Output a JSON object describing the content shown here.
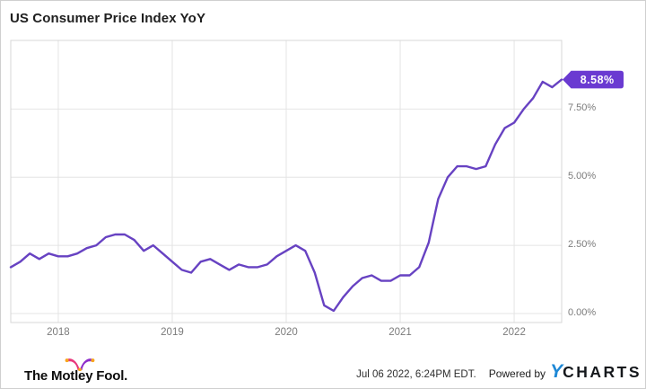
{
  "header": {
    "title": "US Consumer Price Index YoY"
  },
  "chart_data": {
    "type": "line",
    "title": "US Consumer Price Index YoY",
    "x": [
      "2017-07",
      "2017-08",
      "2017-09",
      "2017-10",
      "2017-11",
      "2017-12",
      "2018-01",
      "2018-02",
      "2018-03",
      "2018-04",
      "2018-05",
      "2018-06",
      "2018-07",
      "2018-08",
      "2018-09",
      "2018-10",
      "2018-11",
      "2018-12",
      "2019-01",
      "2019-02",
      "2019-03",
      "2019-04",
      "2019-05",
      "2019-06",
      "2019-07",
      "2019-08",
      "2019-09",
      "2019-10",
      "2019-11",
      "2019-12",
      "2020-01",
      "2020-02",
      "2020-03",
      "2020-04",
      "2020-05",
      "2020-06",
      "2020-07",
      "2020-08",
      "2020-09",
      "2020-10",
      "2020-11",
      "2020-12",
      "2021-01",
      "2021-02",
      "2021-03",
      "2021-04",
      "2021-05",
      "2021-06",
      "2021-07",
      "2021-08",
      "2021-09",
      "2021-10",
      "2021-11",
      "2021-12",
      "2022-01",
      "2022-02",
      "2022-03",
      "2022-04",
      "2022-05"
    ],
    "series": [
      {
        "name": "US Consumer Price Index YoY",
        "values": [
          1.7,
          1.9,
          2.2,
          2.0,
          2.2,
          2.1,
          2.1,
          2.2,
          2.4,
          2.5,
          2.8,
          2.9,
          2.9,
          2.7,
          2.3,
          2.5,
          2.2,
          1.9,
          1.6,
          1.5,
          1.9,
          2.0,
          1.8,
          1.6,
          1.8,
          1.7,
          1.7,
          1.8,
          2.1,
          2.3,
          2.5,
          2.3,
          1.5,
          0.3,
          0.1,
          0.6,
          1.0,
          1.3,
          1.4,
          1.2,
          1.2,
          1.4,
          1.4,
          1.7,
          2.6,
          4.2,
          5.0,
          5.4,
          5.4,
          5.3,
          5.4,
          6.2,
          6.8,
          7.0,
          7.5,
          7.9,
          8.5,
          8.3,
          8.58
        ]
      }
    ],
    "x_tick_labels": [
      "2018",
      "2019",
      "2020",
      "2021",
      "2022"
    ],
    "y_ticks": [
      7.5,
      5.0,
      2.5,
      0.0
    ],
    "y_tick_labels": [
      "7.50%",
      "5.00%",
      "2.50%",
      "0.00%"
    ],
    "ylim": [
      -0.33,
      10.0
    ],
    "grid": true,
    "legend": "none",
    "last_value": 8.58,
    "last_value_label": "8.58%"
  },
  "footer": {
    "motley_fool_label": "The Motley Fool.",
    "timestamp": "Jul 06 2022, 6:24PM EDT.",
    "powered_by": "Powered by",
    "ycharts_y": "Y",
    "ycharts_rest": "CHARTS"
  },
  "colors": {
    "line": "#6742c2",
    "badge": "#6a3ad1",
    "badge_text": "#ffffff",
    "gridline": "#e4e4e4",
    "plot_border": "#d7d7d7",
    "axis_text": "#7b7b7b",
    "ycharts_blue": "#1e88d6",
    "fool_pink": "#e8387d",
    "fool_purple": "#8e2eca",
    "fool_gold": "#f7a51d"
  }
}
